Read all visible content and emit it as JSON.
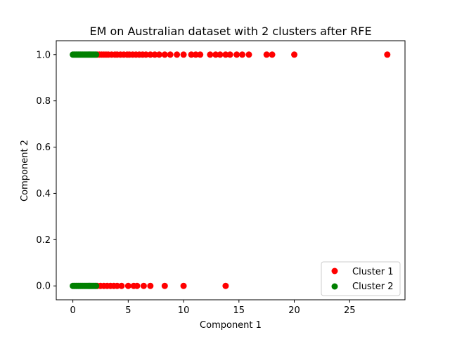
{
  "chart_data": {
    "type": "scatter",
    "title": "EM on Australian dataset with 2 clusters after RFE",
    "xlabel": "Component 1",
    "ylabel": "Component 2",
    "xlim": [
      -1.5,
      30.0
    ],
    "ylim": [
      -0.06,
      1.06
    ],
    "x_ticks": [
      0,
      5,
      10,
      15,
      20,
      25
    ],
    "y_ticks": [
      0.0,
      0.2,
      0.4,
      0.6,
      0.8,
      1.0
    ],
    "x_tick_labels": [
      "0",
      "5",
      "10",
      "15",
      "20",
      "25"
    ],
    "y_tick_labels": [
      "0.0",
      "0.2",
      "0.4",
      "0.6",
      "0.8",
      "1.0"
    ],
    "grid": false,
    "legend_position": "bottom-right",
    "series": [
      {
        "name": "Cluster 1",
        "color": "#ff0000",
        "points": [
          [
            2.2,
            1
          ],
          [
            2.4,
            1
          ],
          [
            2.6,
            1
          ],
          [
            2.8,
            1
          ],
          [
            3.0,
            1
          ],
          [
            3.2,
            1
          ],
          [
            3.5,
            1
          ],
          [
            3.8,
            1
          ],
          [
            4.0,
            1
          ],
          [
            4.3,
            1
          ],
          [
            4.6,
            1
          ],
          [
            4.9,
            1
          ],
          [
            5.1,
            1
          ],
          [
            5.4,
            1
          ],
          [
            5.7,
            1
          ],
          [
            6.0,
            1
          ],
          [
            6.3,
            1
          ],
          [
            6.6,
            1
          ],
          [
            7.0,
            1
          ],
          [
            7.4,
            1
          ],
          [
            7.8,
            1
          ],
          [
            8.3,
            1
          ],
          [
            8.8,
            1
          ],
          [
            9.4,
            1
          ],
          [
            10.0,
            1
          ],
          [
            10.7,
            1
          ],
          [
            11.1,
            1
          ],
          [
            11.5,
            1
          ],
          [
            12.4,
            1
          ],
          [
            12.9,
            1
          ],
          [
            13.3,
            1
          ],
          [
            13.8,
            1
          ],
          [
            14.2,
            1
          ],
          [
            14.8,
            1
          ],
          [
            15.3,
            1
          ],
          [
            15.9,
            1
          ],
          [
            17.5,
            1
          ],
          [
            18.0,
            1
          ],
          [
            20.0,
            1
          ],
          [
            28.4,
            1
          ],
          [
            2.2,
            0
          ],
          [
            2.5,
            0
          ],
          [
            2.8,
            0
          ],
          [
            3.1,
            0
          ],
          [
            3.4,
            0
          ],
          [
            3.7,
            0
          ],
          [
            4.0,
            0
          ],
          [
            4.4,
            0
          ],
          [
            5.0,
            0
          ],
          [
            5.5,
            0
          ],
          [
            5.8,
            0
          ],
          [
            6.4,
            0
          ],
          [
            7.0,
            0
          ],
          [
            8.3,
            0
          ],
          [
            10.0,
            0
          ],
          [
            13.8,
            0
          ]
        ]
      },
      {
        "name": "Cluster 2",
        "color": "#008000",
        "points": [
          [
            0.0,
            1
          ],
          [
            0.1,
            1
          ],
          [
            0.2,
            1
          ],
          [
            0.3,
            1
          ],
          [
            0.4,
            1
          ],
          [
            0.5,
            1
          ],
          [
            0.6,
            1
          ],
          [
            0.7,
            1
          ],
          [
            0.8,
            1
          ],
          [
            0.9,
            1
          ],
          [
            1.0,
            1
          ],
          [
            1.1,
            1
          ],
          [
            1.2,
            1
          ],
          [
            1.3,
            1
          ],
          [
            1.4,
            1
          ],
          [
            1.5,
            1
          ],
          [
            1.6,
            1
          ],
          [
            1.7,
            1
          ],
          [
            1.8,
            1
          ],
          [
            1.9,
            1
          ],
          [
            2.0,
            1
          ],
          [
            2.1,
            1
          ],
          [
            0.0,
            0
          ],
          [
            0.1,
            0
          ],
          [
            0.2,
            0
          ],
          [
            0.3,
            0
          ],
          [
            0.4,
            0
          ],
          [
            0.5,
            0
          ],
          [
            0.6,
            0
          ],
          [
            0.7,
            0
          ],
          [
            0.8,
            0
          ],
          [
            0.9,
            0
          ],
          [
            1.0,
            0
          ],
          [
            1.1,
            0
          ],
          [
            1.2,
            0
          ],
          [
            1.3,
            0
          ],
          [
            1.4,
            0
          ],
          [
            1.5,
            0
          ],
          [
            1.6,
            0
          ],
          [
            1.7,
            0
          ],
          [
            1.8,
            0
          ],
          [
            1.9,
            0
          ],
          [
            2.0,
            0
          ],
          [
            2.1,
            0
          ]
        ]
      }
    ]
  }
}
